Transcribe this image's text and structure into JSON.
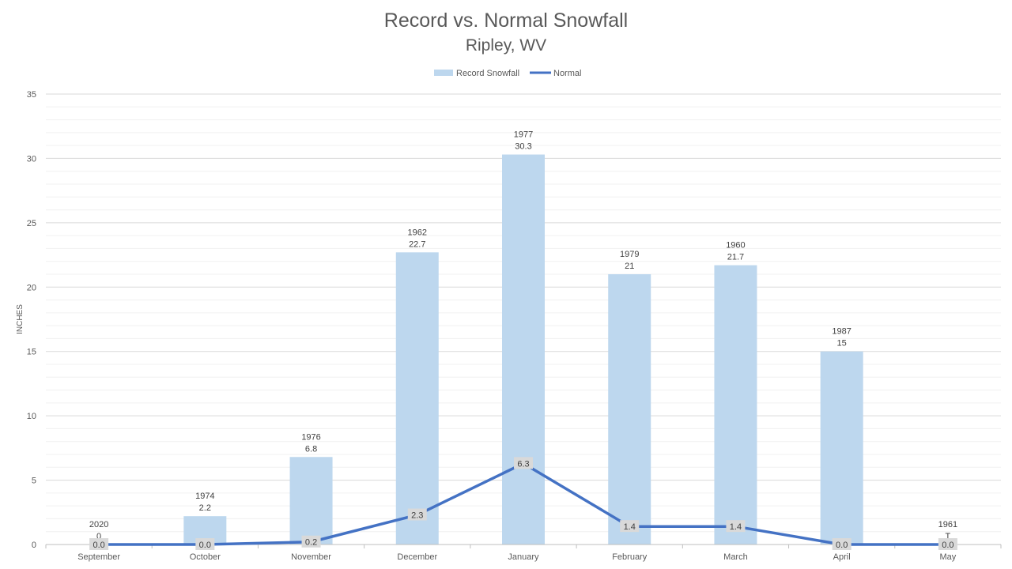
{
  "chart_data": {
    "type": "bar",
    "title": "Record vs. Normal Snowfall",
    "subtitle": "Ripley, WV",
    "ylabel": "INCHES",
    "xlabel": "",
    "ylim": [
      0,
      35
    ],
    "yticks": [
      0,
      5,
      10,
      15,
      20,
      25,
      30,
      35
    ],
    "grid": true,
    "legend_position": "top",
    "categories": [
      "September",
      "October",
      "November",
      "December",
      "January",
      "February",
      "March",
      "April",
      "May"
    ],
    "series": [
      {
        "name": "Record Snowfall",
        "type": "bar",
        "color": "#bdd7ee",
        "values": [
          0,
          2.2,
          6.8,
          22.7,
          30.3,
          21,
          21.7,
          15,
          0
        ],
        "labels": [
          "0",
          "2.2",
          "6.8",
          "22.7",
          "30.3",
          "21",
          "21.7",
          "15",
          "T"
        ],
        "years": [
          "2020",
          "1974",
          "1976",
          "1962",
          "1977",
          "1979",
          "1960",
          "1987",
          "1961"
        ]
      },
      {
        "name": "Normal",
        "type": "line",
        "color": "#4472c4",
        "values": [
          0.0,
          0.0,
          0.2,
          2.3,
          6.3,
          1.4,
          1.4,
          0.0,
          0.0
        ],
        "labels": [
          "0.0",
          "0.0",
          "0.2",
          "2.3",
          "6.3",
          "1.4",
          "1.4",
          "0.0",
          "0.0"
        ]
      }
    ]
  }
}
